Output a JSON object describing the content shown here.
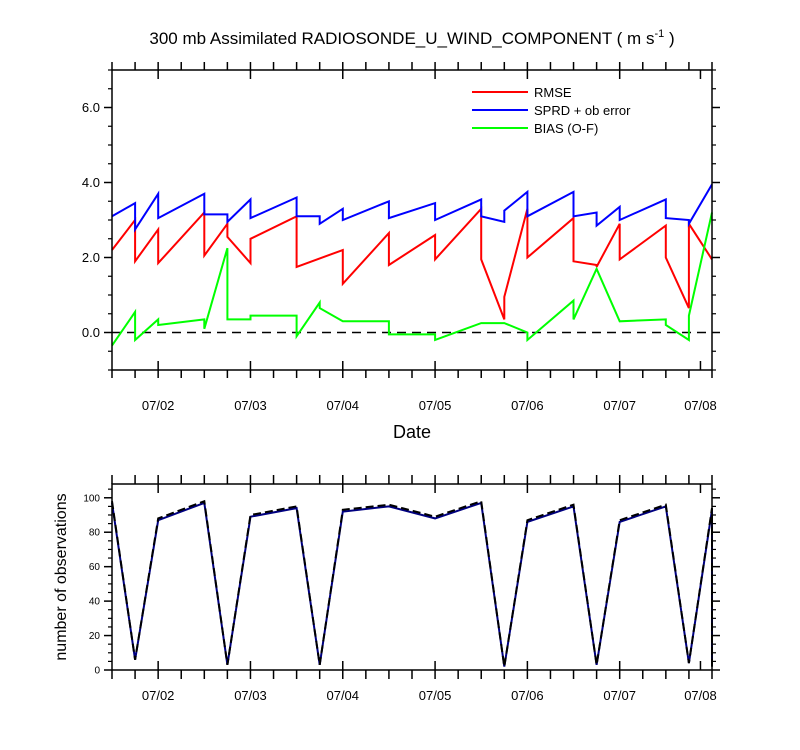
{
  "chart_data": [
    {
      "type": "line",
      "title_main": "300 mb Assimilated RADIOSONDE_U_WIND_COMPONENT ( m s",
      "title_sup": "-1",
      "title_end": " )",
      "xlabel": "Date",
      "ylabel": "",
      "ylim": [
        -1.0,
        7.0
      ],
      "xlim": [
        0,
        26
      ],
      "y_ticks": [
        0.0,
        2.0,
        4.0,
        6.0
      ],
      "y_tick_labels": [
        "0.0",
        "2.0",
        "4.0",
        "6.0"
      ],
      "x_ticks": [
        2,
        6,
        10,
        14,
        18,
        22,
        25.5
      ],
      "x_tick_labels": [
        "07/02",
        "07/03",
        "07/04",
        "07/05",
        "07/06",
        "07/07",
        "07/08"
      ],
      "reference_line": 0.0,
      "legend": [
        "RMSE",
        "SPRD + ob error",
        "BIAS (O-F)"
      ],
      "colors": {
        "RMSE": "#ff0000",
        "SPRD + ob error": "#0000ff",
        "BIAS (O-F)": "#00ff00",
        "zero": "#000000"
      },
      "series": [
        {
          "name": "RMSE",
          "x": [
            0,
            1,
            1,
            2,
            2,
            4,
            4,
            5,
            5,
            6,
            6,
            8,
            8,
            10,
            10,
            12,
            12,
            14,
            14,
            16,
            16,
            17,
            17,
            18,
            18,
            20,
            20,
            21,
            21,
            22,
            22,
            24,
            24,
            25,
            25,
            26
          ],
          "values": [
            2.2,
            3.0,
            1.9,
            2.75,
            1.85,
            3.2,
            2.05,
            2.9,
            2.55,
            1.85,
            2.5,
            3.1,
            1.75,
            2.2,
            1.3,
            2.65,
            1.8,
            2.6,
            1.95,
            3.3,
            1.95,
            0.35,
            0.95,
            3.3,
            2.0,
            3.05,
            1.9,
            1.8,
            1.75,
            2.9,
            1.95,
            2.85,
            2.0,
            0.65,
            2.9,
            1.95
          ]
        },
        {
          "name": "SPRD + ob error",
          "x": [
            0,
            1,
            1,
            2,
            2,
            4,
            4,
            5,
            5,
            6,
            6,
            8,
            8,
            9,
            9,
            10,
            10,
            12,
            12,
            14,
            14,
            16,
            16,
            17,
            17,
            18,
            18,
            20,
            20,
            21,
            21,
            22,
            22,
            24,
            24,
            25,
            25,
            26
          ],
          "values": [
            3.1,
            3.45,
            2.75,
            3.7,
            3.05,
            3.7,
            3.15,
            3.15,
            2.95,
            3.55,
            3.05,
            3.6,
            3.1,
            3.1,
            2.9,
            3.3,
            3.0,
            3.5,
            3.05,
            3.45,
            3.0,
            3.55,
            3.1,
            2.95,
            3.25,
            3.75,
            3.1,
            3.75,
            3.1,
            3.2,
            2.85,
            3.35,
            3.0,
            3.55,
            3.05,
            3.0,
            2.9,
            3.95
          ]
        },
        {
          "name": "BIAS (O-F)",
          "x": [
            0,
            1,
            1,
            2,
            2,
            4,
            4,
            5,
            5,
            6,
            6,
            8,
            8,
            9,
            9,
            10,
            10,
            12,
            12,
            14,
            14,
            16,
            16,
            17,
            17,
            18,
            18,
            20,
            20,
            21,
            21,
            22,
            22,
            24,
            24,
            25,
            25,
            26
          ],
          "values": [
            -0.35,
            0.55,
            -0.2,
            0.35,
            0.2,
            0.35,
            0.1,
            2.25,
            0.35,
            0.35,
            0.45,
            0.45,
            -0.1,
            0.8,
            0.65,
            0.3,
            0.3,
            0.3,
            -0.05,
            -0.05,
            -0.2,
            0.25,
            0.25,
            0.25,
            0.25,
            0.0,
            -0.2,
            0.85,
            0.35,
            1.7,
            1.7,
            0.3,
            0.3,
            0.35,
            0.2,
            -0.2,
            0.45,
            3.2
          ]
        }
      ]
    },
    {
      "type": "line",
      "title": "",
      "xlabel": "",
      "ylabel": "number of observations",
      "ylim": [
        0,
        108
      ],
      "xlim": [
        0,
        26
      ],
      "y_ticks": [
        0,
        20,
        40,
        60,
        80,
        100
      ],
      "y_tick_labels": [
        "0",
        "20",
        "40",
        "60",
        "80",
        "100"
      ],
      "x_ticks": [
        2,
        6,
        10,
        14,
        18,
        22,
        25.5
      ],
      "x_tick_labels": [
        "07/02",
        "07/03",
        "07/04",
        "07/05",
        "07/06",
        "07/07",
        "07/08"
      ],
      "colors": {
        "solid": "#000080",
        "dashed": "#000000"
      },
      "series": [
        {
          "name": "observations",
          "style": "solid",
          "x": [
            0,
            1,
            2,
            4,
            5,
            6,
            8,
            9,
            10,
            12,
            14,
            16,
            17,
            18,
            20,
            21,
            22,
            24,
            25,
            26,
            26
          ],
          "values": [
            97,
            6,
            87,
            97,
            3,
            89,
            94,
            3,
            92,
            95,
            88,
            97,
            2,
            86,
            95,
            3,
            86,
            95,
            4,
            93,
            2
          ]
        },
        {
          "name": "observations (dashed)",
          "style": "dashed",
          "x": [
            0,
            1,
            2,
            4,
            5,
            6,
            8,
            9,
            10,
            12,
            14,
            16,
            17,
            18,
            20,
            21,
            22,
            24,
            25,
            26,
            26
          ],
          "values": [
            98,
            6,
            88,
            98,
            3,
            90,
            95,
            3,
            93,
            96,
            89,
            98,
            2,
            87,
            96,
            3,
            87,
            96,
            4,
            94,
            2
          ]
        }
      ]
    }
  ]
}
